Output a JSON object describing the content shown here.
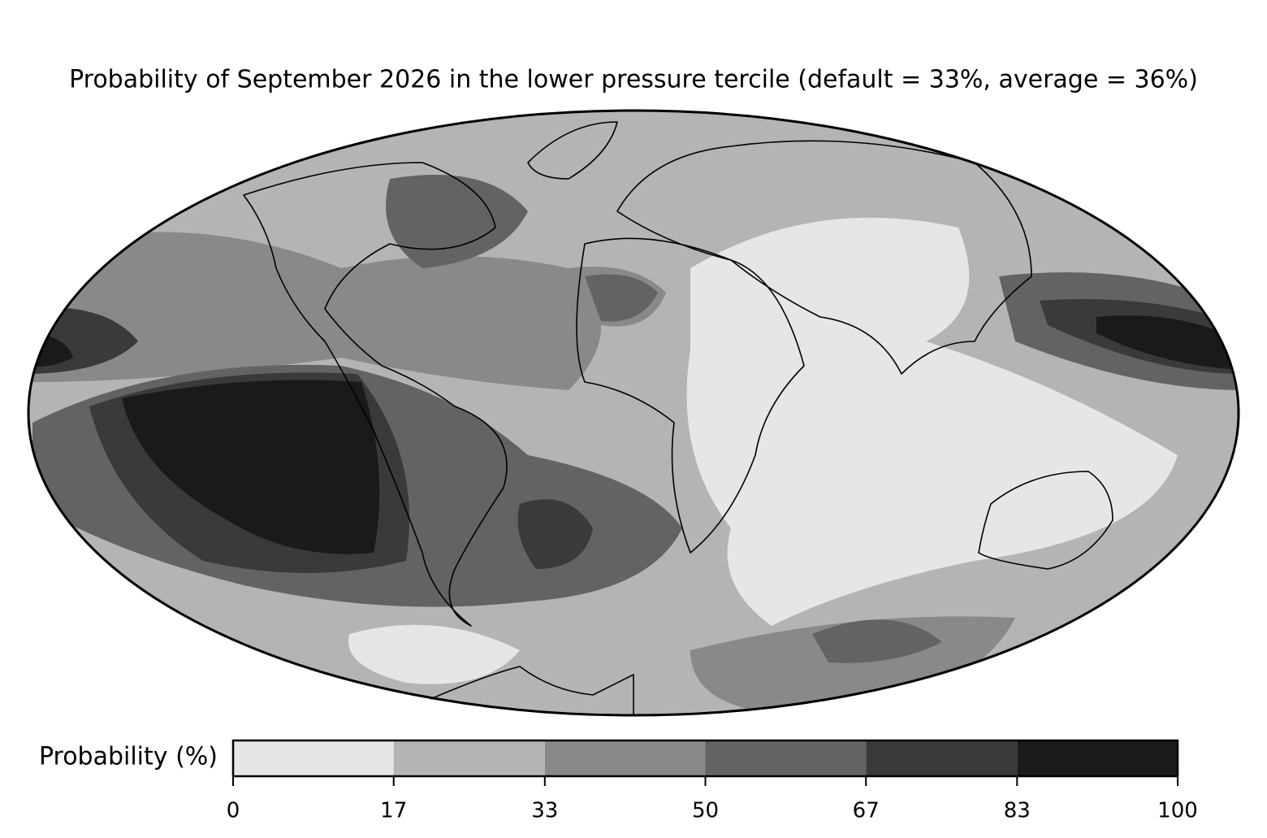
{
  "title": "Probability of September 2026 in the lower pressure tercile (default = 33%, average = 36%)",
  "colorbar": {
    "label": "Probability (%)",
    "ticks": [
      0,
      17,
      33,
      50,
      67,
      83,
      100
    ],
    "colors": [
      "#e6e6e6",
      "#b4b4b4",
      "#898989",
      "#636363",
      "#3a3a3a",
      "#1a1a1a"
    ]
  }
}
